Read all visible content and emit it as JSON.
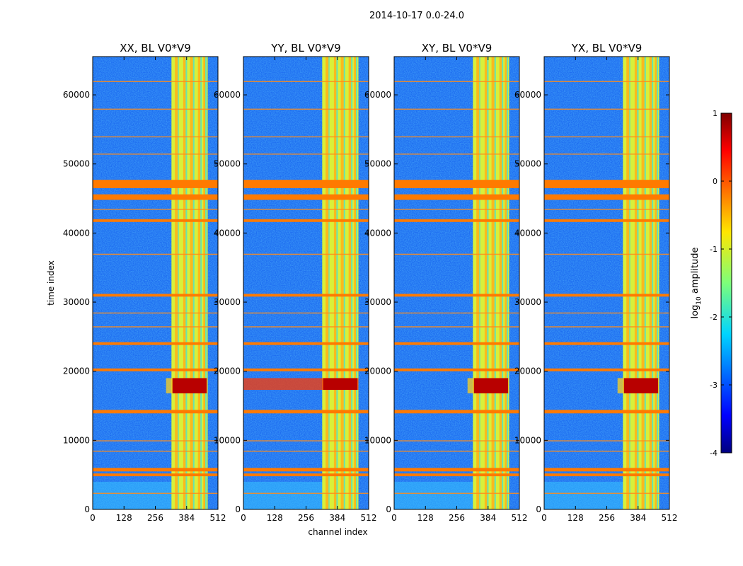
{
  "figure": {
    "suptitle": "2014-10-17 0.0-24.0",
    "colorbar": {
      "label": "log10 amplitude",
      "ticks": [
        1,
        0,
        -1,
        -2,
        -3,
        -4
      ],
      "range": [
        -4,
        1
      ]
    }
  },
  "chart_data": [
    {
      "type": "heatmap",
      "title": "XX, BL V0*V9",
      "xlabel": "",
      "ylabel": "time index",
      "xlim": [
        0,
        512
      ],
      "ylim": [
        0,
        65536
      ],
      "xticks": [
        0,
        128,
        256,
        384,
        512
      ],
      "yticks": [
        0,
        10000,
        20000,
        30000,
        40000,
        50000,
        60000
      ],
      "rfi_channel_band": [
        322,
        470
      ],
      "flagged_time_bands": [
        [
          46500,
          47700
        ],
        [
          44800,
          45600
        ],
        [
          41600,
          42000
        ],
        [
          30800,
          31200
        ],
        [
          23800,
          24200
        ],
        [
          20000,
          20400
        ],
        [
          13900,
          14400
        ],
        [
          5500,
          6000
        ],
        [
          4800,
          5200
        ]
      ],
      "bright_time_band": [
        16800,
        19000
      ]
    },
    {
      "type": "heatmap",
      "title": "YY, BL V0*V9",
      "xlabel": "channel index",
      "ylabel": "",
      "xlim": [
        0,
        512
      ],
      "ylim": [
        0,
        65536
      ],
      "xticks": [
        0,
        128,
        256,
        384,
        512
      ],
      "yticks": [
        0,
        10000,
        20000,
        30000,
        40000,
        50000,
        60000
      ],
      "rfi_channel_band": [
        322,
        470
      ],
      "flagged_time_bands": [
        [
          46500,
          47700
        ],
        [
          44800,
          45600
        ],
        [
          41600,
          42000
        ],
        [
          30800,
          31200
        ],
        [
          23800,
          24200
        ],
        [
          20000,
          20400
        ],
        [
          13900,
          14400
        ],
        [
          5500,
          6000
        ],
        [
          4800,
          5200
        ]
      ],
      "bright_time_band": [
        17300,
        19000
      ]
    },
    {
      "type": "heatmap",
      "title": "XY, BL V0*V9",
      "xlabel": "",
      "ylabel": "",
      "xlim": [
        0,
        512
      ],
      "ylim": [
        0,
        65536
      ],
      "xticks": [
        0,
        128,
        256,
        384,
        512
      ],
      "yticks": [
        0,
        10000,
        20000,
        30000,
        40000,
        50000,
        60000
      ],
      "rfi_channel_band": [
        322,
        470
      ],
      "flagged_time_bands": [
        [
          46500,
          47700
        ],
        [
          44800,
          45600
        ],
        [
          41600,
          42000
        ],
        [
          30800,
          31200
        ],
        [
          23800,
          24200
        ],
        [
          20000,
          20400
        ],
        [
          13900,
          14400
        ],
        [
          5500,
          6000
        ],
        [
          4800,
          5200
        ]
      ],
      "bright_time_band": [
        16800,
        19000
      ]
    },
    {
      "type": "heatmap",
      "title": "YX, BL V0*V9",
      "xlabel": "",
      "ylabel": "",
      "xlim": [
        0,
        512
      ],
      "ylim": [
        0,
        65536
      ],
      "xticks": [
        0,
        128,
        256,
        384,
        512
      ],
      "yticks": [
        0,
        10000,
        20000,
        30000,
        40000,
        50000,
        60000
      ],
      "rfi_channel_band": [
        322,
        470
      ],
      "flagged_time_bands": [
        [
          46500,
          47700
        ],
        [
          44800,
          45600
        ],
        [
          41600,
          42000
        ],
        [
          30800,
          31200
        ],
        [
          23800,
          24200
        ],
        [
          20000,
          20400
        ],
        [
          13900,
          14400
        ],
        [
          5500,
          6000
        ],
        [
          4800,
          5200
        ]
      ],
      "bright_time_band": [
        16800,
        19000
      ]
    }
  ]
}
